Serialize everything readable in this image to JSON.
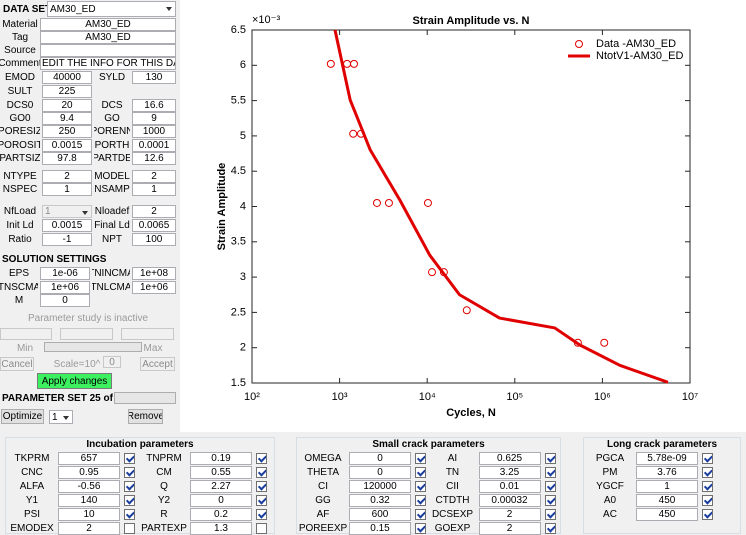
{
  "left_panel": {
    "data_set": {
      "label": "DATA SET",
      "value": "AM30_ED"
    },
    "info_rows": [
      {
        "label": "Material",
        "value": "AM30_ED"
      },
      {
        "label": "Tag",
        "value": "AM30_ED"
      },
      {
        "label": "Source"
      },
      {
        "label": "Comment",
        "value": "!!! EDIT THE INFO FOR THIS DAT"
      }
    ],
    "params": [
      {
        "label": "EMOD",
        "value": "40000",
        "label2": "SYLD",
        "value2": "130"
      },
      {
        "label": "SULT",
        "value": "225"
      },
      {
        "label": "DCS0",
        "value": "20",
        "label2": "DCS",
        "value2": "16.6"
      },
      {
        "label": "GO0",
        "value": "9.4",
        "label2": "GO",
        "value2": "9"
      },
      {
        "label": "PORESIZ",
        "value": "250",
        "label2": "PORENN",
        "value2": "1000"
      },
      {
        "label": "POROSIT",
        "value": "0.0015",
        "label2": "PORTH",
        "value2": "0.0001"
      },
      {
        "label": "PARTSIZ",
        "value": "97.8",
        "label2": "PARTDE",
        "value2": "12.6"
      },
      {
        "label": "NTYPE",
        "value": "2",
        "label2": "MODEL",
        "value2": "2"
      },
      {
        "label": "NSPEC",
        "value": "1",
        "label2": "NSAMP",
        "value2": "1"
      },
      {
        "label": "NfLoad",
        "value": "1",
        "disabled": true,
        "label2": "Nloadef",
        "value2": "2"
      },
      {
        "label": "Init Ld",
        "value": "0.0015",
        "label2": "Final Ld",
        "value2": "0.0065"
      },
      {
        "label": "Ratio",
        "value": "-1",
        "label2": "NPT",
        "value2": "100"
      }
    ],
    "solution": {
      "title": "SOLUTION SETTINGS",
      "rows": [
        {
          "label": "EPS",
          "value": "1e-06",
          "label2": "TNINCMA",
          "value2": "1e+08"
        },
        {
          "label": "TNSCMA",
          "value": "1e+06",
          "label2": "TNLCMA",
          "value2": "1e+06"
        },
        {
          "label": "M",
          "value": "0"
        }
      ]
    },
    "study": {
      "status": "Parameter study is inactive",
      "min": "Min",
      "max": "Max",
      "cancel": "Cancel",
      "scale": "Scale=10^",
      "scale_value": "0",
      "accept": "Accept",
      "apply": "Apply changes"
    },
    "parameter_set": {
      "label": "PARAMETER SET 25 of 25",
      "optimize": "Optimize",
      "selector": "1",
      "remove": "Remove"
    }
  },
  "chart_data": {
    "type": "line",
    "title": "Strain Amplitude vs. N",
    "x_label": "Cycles, N",
    "y_label": "Strain Amplitude",
    "y_multiplier": "×10⁻³",
    "x_scale": "log",
    "xlim": [
      100,
      10000000
    ],
    "xticks": [
      {
        "value": 100,
        "label": "10²"
      },
      {
        "value": 1000,
        "label": "10³"
      },
      {
        "value": 10000,
        "label": "10⁴"
      },
      {
        "value": 100000,
        "label": "10⁵"
      },
      {
        "value": 1000000,
        "label": "10⁶"
      },
      {
        "value": 10000000,
        "label": "10⁷"
      }
    ],
    "ylim": [
      1.5,
      6.5
    ],
    "yticks": [
      1.5,
      2,
      2.5,
      3,
      3.5,
      4,
      4.5,
      5,
      5.5,
      6,
      6.5
    ],
    "legend": "upper right",
    "series": [
      {
        "name": "Data -AM30_ED",
        "color": "#e00000",
        "style": "markers",
        "x": [
          794,
          1216,
          1460,
          1430,
          1755,
          2670,
          3660,
          10200,
          11350,
          15500,
          28300,
          525000,
          1050000
        ],
        "values": [
          6.02,
          6.02,
          6.02,
          5.03,
          5.03,
          4.05,
          4.05,
          4.05,
          3.07,
          3.07,
          2.53,
          2.07,
          2.07
        ]
      },
      {
        "name": "NtotV1-AM30_ED",
        "color": "#e00000",
        "style": "line",
        "x": [
          886,
          1320,
          2240,
          4880,
          10700,
          23400,
          67000,
          286000,
          550000,
          1580000,
          5600000
        ],
        "values": [
          6.5,
          5.51,
          4.8,
          4.09,
          3.31,
          2.75,
          2.42,
          2.28,
          2.04,
          1.75,
          1.51
        ]
      }
    ]
  },
  "bottom_groups": [
    {
      "title": "Incubation parameters",
      "columns": [
        [
          {
            "label": "TKPRM",
            "value": "657",
            "checked": true
          },
          {
            "label": "CNC",
            "value": "0.95",
            "checked": true
          },
          {
            "label": "ALFA",
            "value": "-0.56",
            "checked": true
          },
          {
            "label": "Y1",
            "value": "140",
            "checked": true
          },
          {
            "label": "PSI",
            "value": "10",
            "checked": true
          },
          {
            "label": "EMODEX",
            "value": "2",
            "checked": false
          }
        ],
        [
          {
            "label": "TNPRM",
            "value": "0.19",
            "checked": true
          },
          {
            "label": "CM",
            "value": "0.55",
            "checked": true
          },
          {
            "label": "Q",
            "value": "2.27",
            "checked": true
          },
          {
            "label": "Y2",
            "value": "0",
            "checked": true
          },
          {
            "label": "R",
            "value": "0.2",
            "checked": true
          },
          {
            "label": "PARTEXP",
            "value": "1.3",
            "checked": false
          }
        ]
      ]
    },
    {
      "title": "Small crack parameters",
      "columns": [
        [
          {
            "label": "OMEGA",
            "value": "0",
            "checked": true
          },
          {
            "label": "THETA",
            "value": "0",
            "checked": true
          },
          {
            "label": "CI",
            "value": "120000",
            "checked": true
          },
          {
            "label": "GG",
            "value": "0.32",
            "checked": true
          },
          {
            "label": "AF",
            "value": "600",
            "checked": true
          },
          {
            "label": "POREEXP",
            "value": "0.15",
            "checked": true
          }
        ],
        [
          {
            "label": "AI",
            "value": "0.625",
            "checked": true
          },
          {
            "label": "TN",
            "value": "3.25",
            "checked": true
          },
          {
            "label": "CII",
            "value": "0.01",
            "checked": true
          },
          {
            "label": "CTDTH",
            "value": "0.00032",
            "checked": true
          },
          {
            "label": "DCSEXP",
            "value": "2",
            "checked": true
          },
          {
            "label": "GOEXP",
            "value": "2",
            "checked": true
          }
        ]
      ]
    },
    {
      "title": "Long crack parameters",
      "columns": [
        [
          {
            "label": "PGCA",
            "value": "5.78e-09",
            "checked": true
          },
          {
            "label": "PM",
            "value": "3.76",
            "checked": true
          },
          {
            "label": "YGCF",
            "value": "1",
            "checked": true
          },
          {
            "label": "A0",
            "value": "450",
            "checked": true
          },
          {
            "label": "AC",
            "value": "450",
            "checked": true
          }
        ]
      ]
    }
  ]
}
